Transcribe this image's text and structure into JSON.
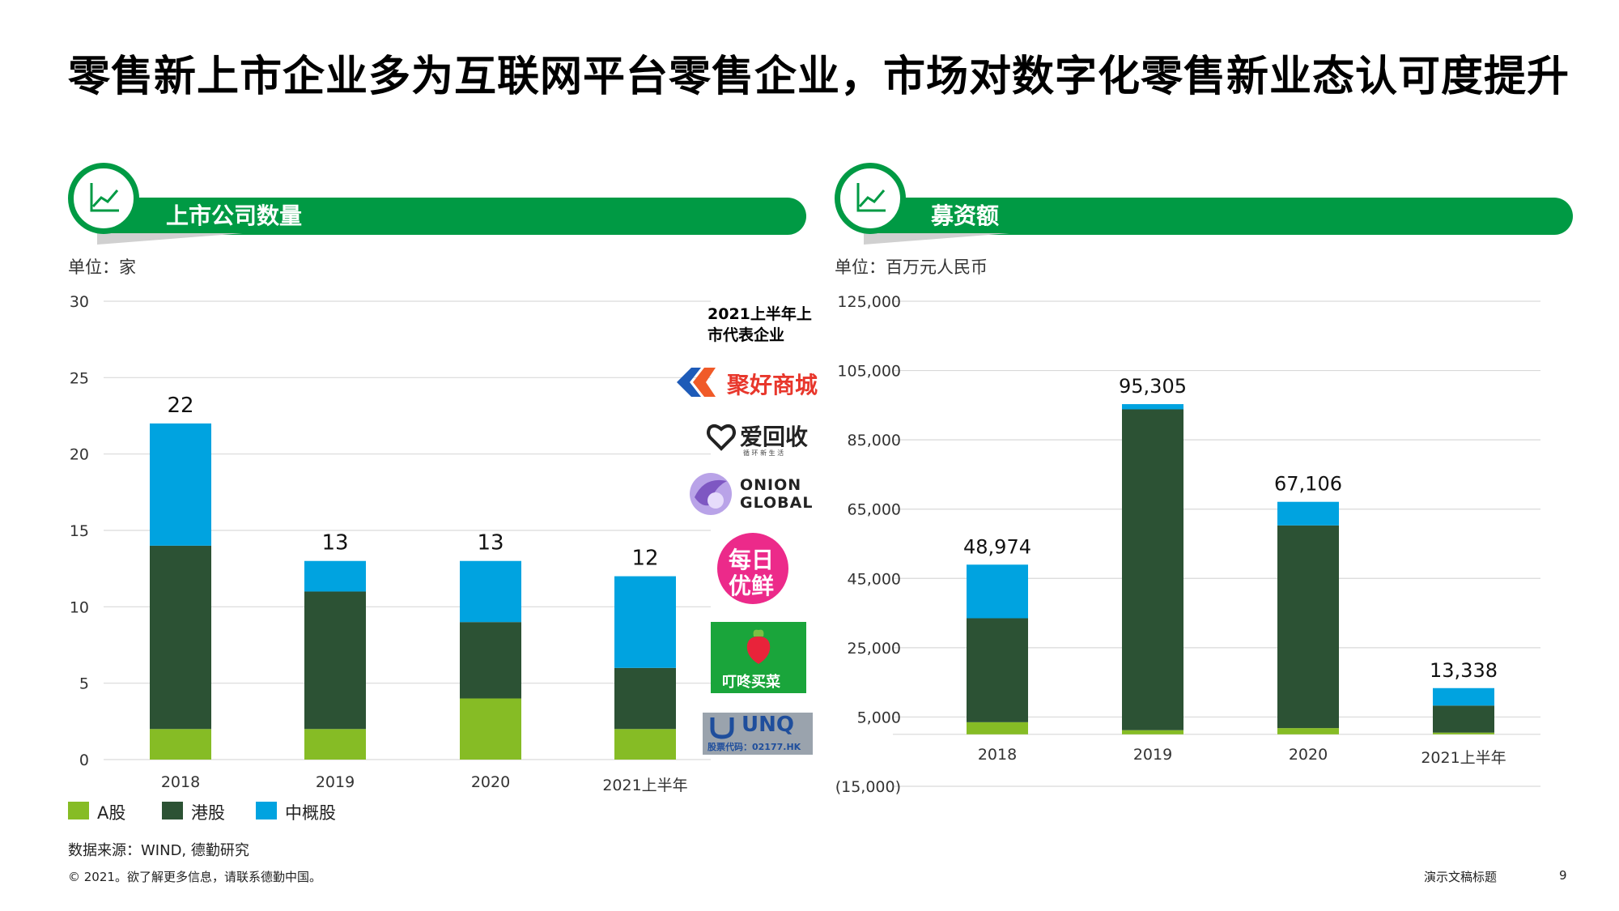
{
  "page_title": "零售新上市企业多为互联网平台零售企业，市场对数字化零售新业态认可度提升",
  "left_panel": {
    "banner_title": "上市公司数量",
    "icon": "line-chart-icon",
    "unit": "单位：家",
    "rep_title": "2021上半年上市代表企业",
    "logos": [
      {
        "name": "聚好商城",
        "icon": "juhao-logo"
      },
      {
        "name": "爱回收",
        "sub": "循 环 新 生 活",
        "icon": "aihuishou-logo"
      },
      {
        "name": "ONION GLOBAL",
        "line1": "ONION",
        "line2": "GLOBAL",
        "icon": "onion-logo"
      },
      {
        "name": "每日优鲜",
        "line1": "每日",
        "line2": "优鲜",
        "icon": "missfresh-logo"
      },
      {
        "name": "叮咚买菜",
        "icon": "dingdong-logo"
      },
      {
        "name": "UNQ",
        "sub": "股票代码：02177.HK",
        "icon": "unq-logo"
      }
    ]
  },
  "right_panel": {
    "banner_title": "募资额",
    "icon": "line-chart-icon",
    "unit": "单位：百万元人民币"
  },
  "colors": {
    "a_share": "#86bc25",
    "hk_share": "#2c5234",
    "us_china": "#00a3e0",
    "brand_green": "#009a44"
  },
  "legend": [
    {
      "label": "A股",
      "color": "#86bc25"
    },
    {
      "label": "港股",
      "color": "#2c5234"
    },
    {
      "label": "中概股",
      "color": "#00a3e0"
    }
  ],
  "chart_data": [
    {
      "type": "bar",
      "stacked": true,
      "title": "上市公司数量",
      "categories": [
        "2018",
        "2019",
        "2020",
        "2021上半年"
      ],
      "series": [
        {
          "name": "A股",
          "values": [
            2,
            2,
            4,
            2
          ]
        },
        {
          "name": "港股",
          "values": [
            12,
            9,
            5,
            4
          ]
        },
        {
          "name": "中概股",
          "values": [
            8,
            2,
            4,
            6
          ]
        }
      ],
      "totals": [
        "22",
        "13",
        "13",
        "12"
      ],
      "ylim": [
        0,
        30
      ],
      "yticks": [
        "0",
        "5",
        "10",
        "15",
        "20",
        "25",
        "30"
      ],
      "yticks_values": [
        0,
        5,
        10,
        15,
        20,
        25,
        30
      ],
      "grid": true
    },
    {
      "type": "bar",
      "stacked": true,
      "title": "募资额",
      "categories": [
        "2018",
        "2019",
        "2020",
        "2021上半年"
      ],
      "series": [
        {
          "name": "A股",
          "values": [
            3500,
            1200,
            1800,
            500
          ]
        },
        {
          "name": "港股",
          "values": [
            30000,
            92600,
            58500,
            7800
          ]
        },
        {
          "name": "中概股",
          "values": [
            15474,
            1505,
            6806,
            5038
          ]
        }
      ],
      "totals": [
        "48,974",
        "95,305",
        "67,106",
        "13,338"
      ],
      "total_values": [
        48974,
        95305,
        67106,
        13338
      ],
      "ylim": [
        -15000,
        125000
      ],
      "yticks": [
        "(15,000)",
        "5,000",
        "25,000",
        "45,000",
        "65,000",
        "85,000",
        "105,000",
        "125,000"
      ],
      "yticks_values": [
        -15000,
        5000,
        25000,
        45000,
        65000,
        85000,
        105000,
        125000
      ],
      "grid": true
    }
  ],
  "source": "数据来源：WIND, 德勤研究",
  "footer": {
    "copyright": "© 2021。欲了解更多信息，请联系德勤中国。",
    "doc_title": "演示文稿标题",
    "page_number": "9"
  }
}
